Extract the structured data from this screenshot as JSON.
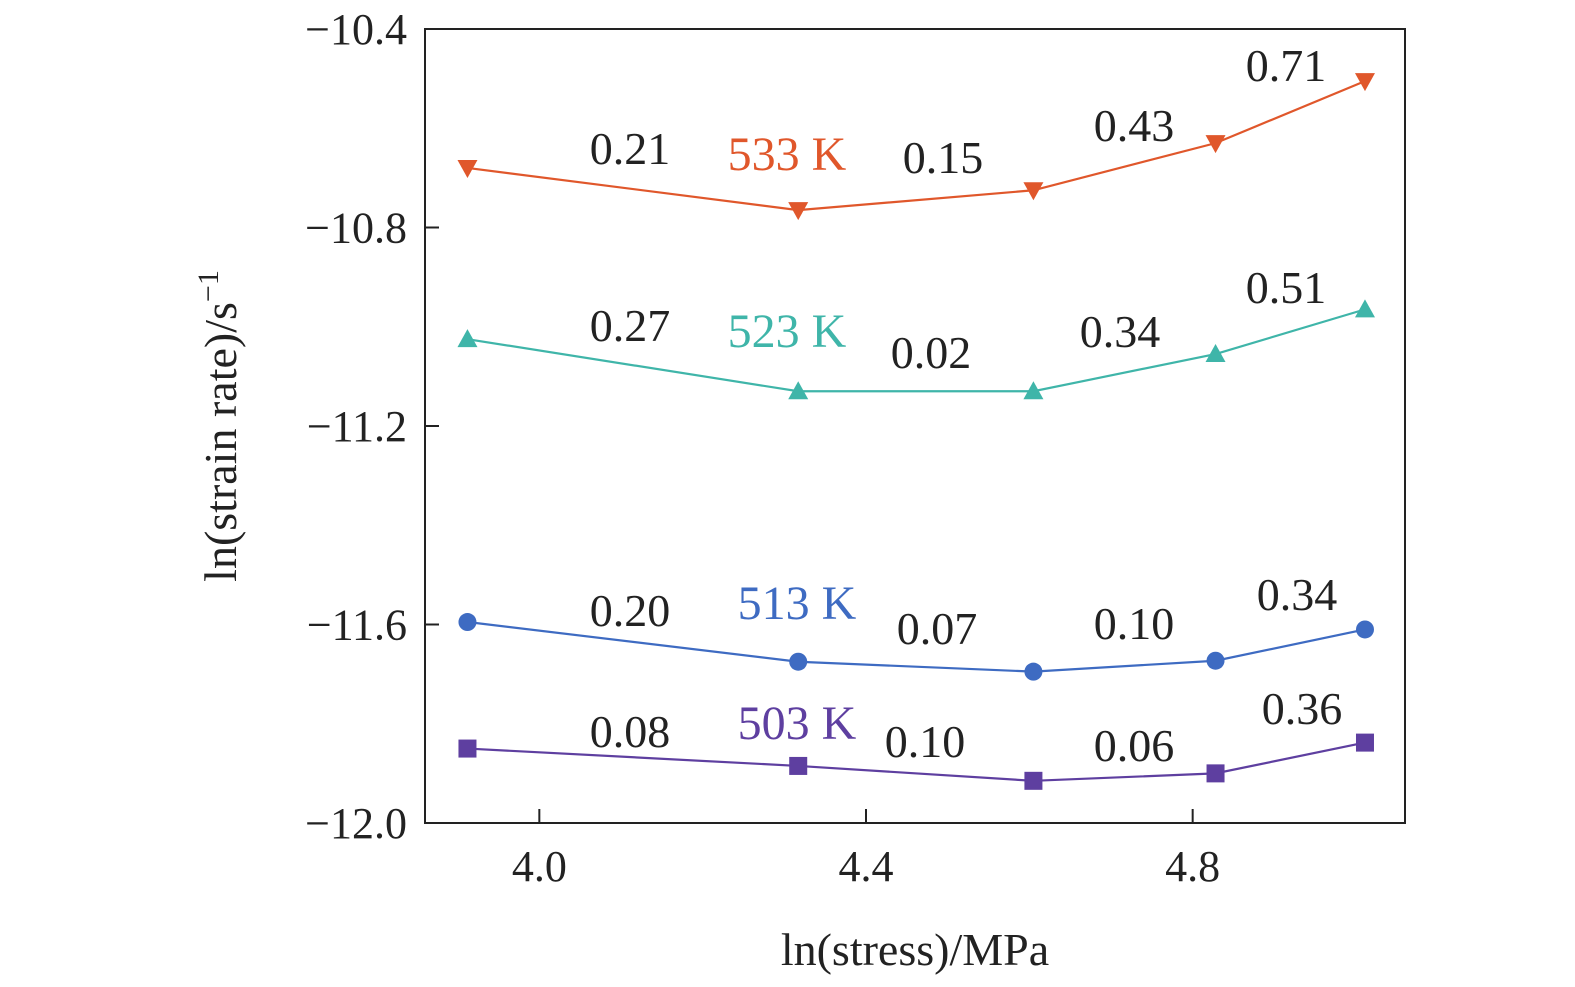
{
  "chart_data": {
    "type": "line",
    "xlabel": "ln(stress)/MPa",
    "ylabel": "ln(strain rate)/s",
    "ylabel_sup": "−1",
    "xlim": [
      3.86,
      5.06
    ],
    "ylim": [
      -12.0,
      -10.4
    ],
    "xticks": [
      4.0,
      4.4,
      4.8
    ],
    "xtick_labels": [
      "4.0",
      "4.4",
      "4.8"
    ],
    "yticks": [
      -10.4,
      -10.8,
      -11.2,
      -11.6,
      -12.0
    ],
    "ytick_labels": [
      "−10.4",
      "−10.8",
      "−11.2",
      "−11.6",
      "−12.0"
    ],
    "grid": false,
    "legend": "none",
    "series": [
      {
        "name": "533 K",
        "color": "#e0572b",
        "marker": "triangle-down",
        "x": [
          3.912,
          4.317,
          4.605,
          4.828,
          5.011
        ],
        "y": [
          -10.68,
          -10.765,
          -10.725,
          -10.63,
          -10.505
        ],
        "segment_labels": [
          "0.21",
          "0.15",
          "0.43",
          "0.71"
        ]
      },
      {
        "name": "523 K",
        "color": "#3fb5a9",
        "marker": "triangle-up",
        "x": [
          3.912,
          4.317,
          4.605,
          4.828,
          5.011
        ],
        "y": [
          -11.025,
          -11.13,
          -11.13,
          -11.055,
          -10.965
        ],
        "segment_labels": [
          "0.27",
          "0.02",
          "0.34",
          "0.51"
        ]
      },
      {
        "name": "513 K",
        "color": "#3e6bc2",
        "marker": "circle",
        "x": [
          3.912,
          4.317,
          4.605,
          4.828,
          5.011
        ],
        "y": [
          -11.595,
          -11.675,
          -11.695,
          -11.673,
          -11.61
        ],
        "segment_labels": [
          "0.20",
          "0.07",
          "0.10",
          "0.34"
        ]
      },
      {
        "name": "503 K",
        "color": "#5e3fa0",
        "marker": "square",
        "x": [
          3.912,
          4.317,
          4.605,
          4.828,
          5.011
        ],
        "y": [
          -11.85,
          -11.885,
          -11.915,
          -11.9,
          -11.838
        ],
        "segment_labels": [
          "0.08",
          "0.10",
          "0.06",
          "0.36"
        ]
      }
    ]
  }
}
